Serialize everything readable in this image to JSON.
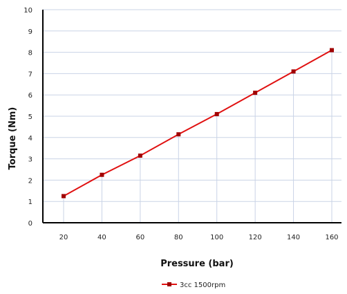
{
  "chart_data": {
    "type": "line",
    "xlabel": "Pressure (bar)",
    "ylabel": "Torque (Nm)",
    "ylim": [
      0,
      10
    ],
    "yticks": [
      "0",
      "1",
      "2",
      "3",
      "4",
      "5",
      "6",
      "7",
      "8",
      "9",
      "10"
    ],
    "x": [
      20,
      40,
      60,
      80,
      100,
      120,
      140,
      160
    ],
    "series": [
      {
        "name": "3cc 1500rpm",
        "color": "#e01010",
        "marker_color": "#a00000",
        "values": [
          1.25,
          2.25,
          3.15,
          4.15,
          5.1,
          6.1,
          7.1,
          8.1
        ]
      }
    ],
    "grid": {
      "horizontal": true,
      "vertical_drop_lines": true
    },
    "legend_position": "bottom-center"
  }
}
